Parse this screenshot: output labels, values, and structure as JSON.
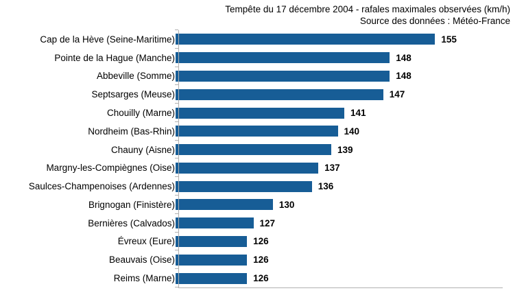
{
  "colors": {
    "bar": "#175d96",
    "axis": "#b0b0b0",
    "text": "#000000",
    "background": "#ffffff"
  },
  "chart_data": {
    "type": "bar",
    "orientation": "horizontal",
    "title": "Tempête du 17 décembre 2004 - rafales maximales observées (km/h)",
    "subtitle": "Source des données : Météo-France",
    "categories": [
      "Cap de la Hève (Seine-Maritime)",
      "Pointe de la Hague (Manche)",
      "Abbeville (Somme)",
      "Septsarges (Meuse)",
      "Chouilly (Marne)",
      "Nordheim (Bas-Rhin)",
      "Chauny (Aisne)",
      "Margny-les-Compiègnes (Oise)",
      "Saulces-Champenoises (Ardennes)",
      "Brignogan (Finistère)",
      "Bernières (Calvados)",
      "Évreux (Eure)",
      "Beauvais (Oise)",
      "Reims (Marne)"
    ],
    "values": [
      155,
      148,
      148,
      147,
      141,
      140,
      139,
      137,
      136,
      130,
      127,
      126,
      126,
      126
    ],
    "xlabel": "",
    "ylabel": "",
    "xlim": [
      115,
      165
    ],
    "value_labels_position": "end-of-bar",
    "grid": false,
    "legend": false
  }
}
